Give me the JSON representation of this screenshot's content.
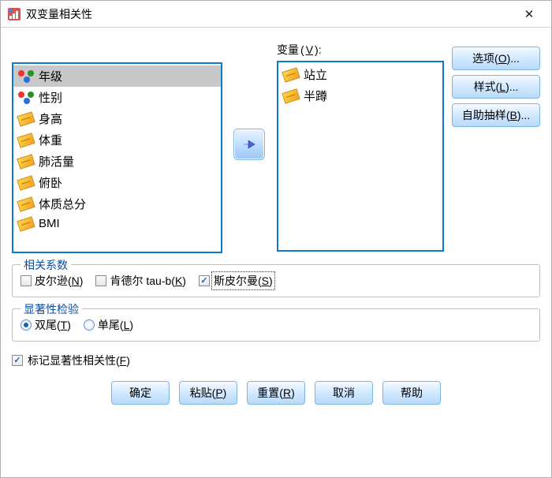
{
  "window": {
    "title": "双变量相关性",
    "close_glyph": "✕"
  },
  "labels": {
    "variables": "变量",
    "variables_mn": "V",
    "coeff_legend": "相关系数",
    "sig_legend": "显著性检验"
  },
  "source_list": [
    {
      "label": "年级",
      "icon": "nominal",
      "selected": true
    },
    {
      "label": "性别",
      "icon": "nominal",
      "selected": false
    },
    {
      "label": "身高",
      "icon": "scale",
      "selected": false
    },
    {
      "label": "体重",
      "icon": "scale",
      "selected": false
    },
    {
      "label": "肺活量",
      "icon": "scale",
      "selected": false
    },
    {
      "label": "俯卧",
      "icon": "scale",
      "selected": false
    },
    {
      "label": "体质总分",
      "icon": "scale",
      "selected": false
    },
    {
      "label": "BMI",
      "icon": "scale",
      "selected": false
    }
  ],
  "target_list": [
    {
      "label": "站立",
      "icon": "scale"
    },
    {
      "label": "半蹲",
      "icon": "scale"
    }
  ],
  "side_buttons": {
    "options": {
      "text": "选项",
      "mn": "O",
      "suffix": "..."
    },
    "style": {
      "text": "样式",
      "mn": "L",
      "suffix": "..."
    },
    "bootstrap": {
      "text": "自助抽样",
      "mn": "B",
      "suffix": "..."
    }
  },
  "coeffs": {
    "pearson": {
      "text": "皮尔逊",
      "mn": "N",
      "checked": false
    },
    "kendall": {
      "text": "肯德尔 tau-b",
      "mn": "K",
      "checked": false
    },
    "spearman": {
      "text": "斯皮尔曼",
      "mn": "S",
      "checked": true,
      "focused": true
    }
  },
  "sig": {
    "two_tailed": {
      "text": "双尾",
      "mn": "T",
      "checked": true
    },
    "one_tailed": {
      "text": "单尾",
      "mn": "L",
      "checked": false
    }
  },
  "flag": {
    "text": "标记显著性相关性",
    "mn": "F",
    "checked": true
  },
  "buttons": {
    "ok": "确定",
    "paste": {
      "text": "粘贴",
      "mn": "P"
    },
    "reset": {
      "text": "重置",
      "mn": "R"
    },
    "cancel": "取消",
    "help": "帮助"
  },
  "colors": {
    "border_blue": "#1078c8",
    "button_gradient_top": "#f4faff",
    "button_gradient_bot": "#b9daf8",
    "legend_color": "#0a4ea0"
  }
}
